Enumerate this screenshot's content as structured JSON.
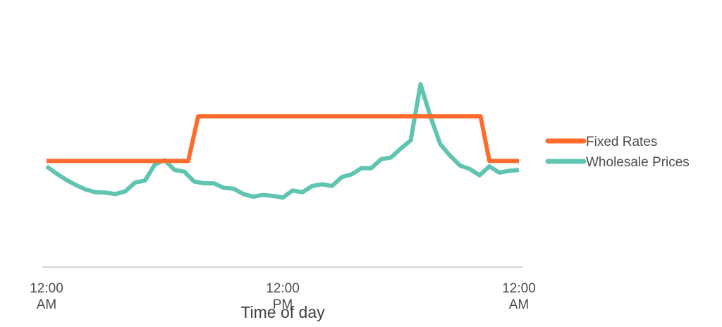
{
  "chart_data": {
    "type": "line",
    "title": "",
    "xlabel": "Time of day",
    "ylabel": "",
    "x_ticks": [
      {
        "hour": 0,
        "lines": [
          "12:00",
          "AM"
        ]
      },
      {
        "hour": 12,
        "lines": [
          "12:00",
          "PM"
        ]
      },
      {
        "hour": 24,
        "lines": [
          "12:00",
          "AM"
        ]
      }
    ],
    "xlim": [
      0,
      24
    ],
    "ylim": [
      0,
      100
    ],
    "grid": false,
    "legend_position": "right",
    "series": [
      {
        "name": "Fixed Rates",
        "color": "#ff6b2b",
        "x": [
          0,
          7.2,
          7.7,
          22.05,
          22.5,
          24
        ],
        "values": [
          59,
          59,
          84,
          84,
          59,
          59
        ]
      },
      {
        "name": "Wholesale Prices",
        "color": "#5fc4b0",
        "x": [
          0,
          0.5,
          1,
          1.5,
          2,
          2.5,
          3,
          3.5,
          4,
          4.5,
          5,
          5.5,
          6,
          6.5,
          7,
          7.5,
          8,
          8.5,
          9,
          9.5,
          10,
          10.5,
          11,
          11.5,
          12,
          12.5,
          13,
          13.5,
          14,
          14.5,
          15,
          15.5,
          16,
          16.5,
          17,
          17.5,
          18,
          18.5,
          19,
          19.5,
          20,
          20.5,
          21,
          21.5,
          22,
          22.5,
          23,
          23.5,
          24
        ],
        "values": [
          56,
          52,
          48.5,
          45.5,
          43,
          41.5,
          41.3,
          40.5,
          42,
          47,
          48,
          57,
          59.5,
          54,
          53,
          47.5,
          46.5,
          46.5,
          44,
          43.5,
          40.5,
          39,
          40,
          39.5,
          38.5,
          42.5,
          41.5,
          45,
          46,
          45,
          50,
          51.5,
          55,
          55,
          60,
          61,
          66,
          70.5,
          102,
          84,
          68.5,
          62,
          56.5,
          54.5,
          51,
          56,
          52.5,
          53.5,
          54
        ]
      }
    ]
  }
}
